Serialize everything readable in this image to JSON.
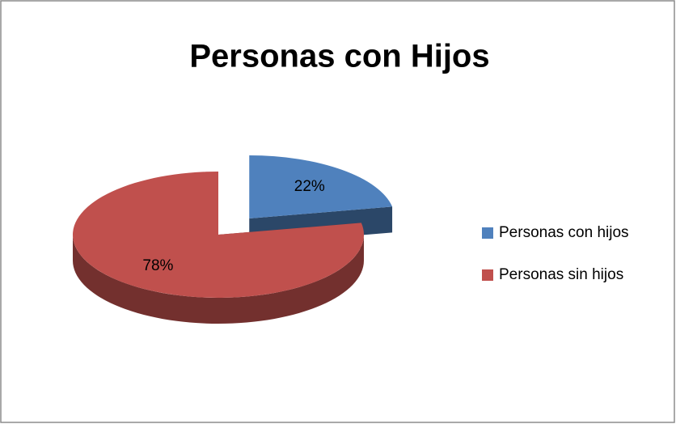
{
  "chart_data": {
    "type": "pie",
    "title": "Personas con Hijos",
    "categories": [
      "Personas con hijos",
      "Personas sin hijos"
    ],
    "values": [
      22,
      78
    ],
    "value_labels": [
      "22%",
      "78%"
    ],
    "colors": [
      "#4f81bd",
      "#c0504d"
    ],
    "legend": "right"
  }
}
